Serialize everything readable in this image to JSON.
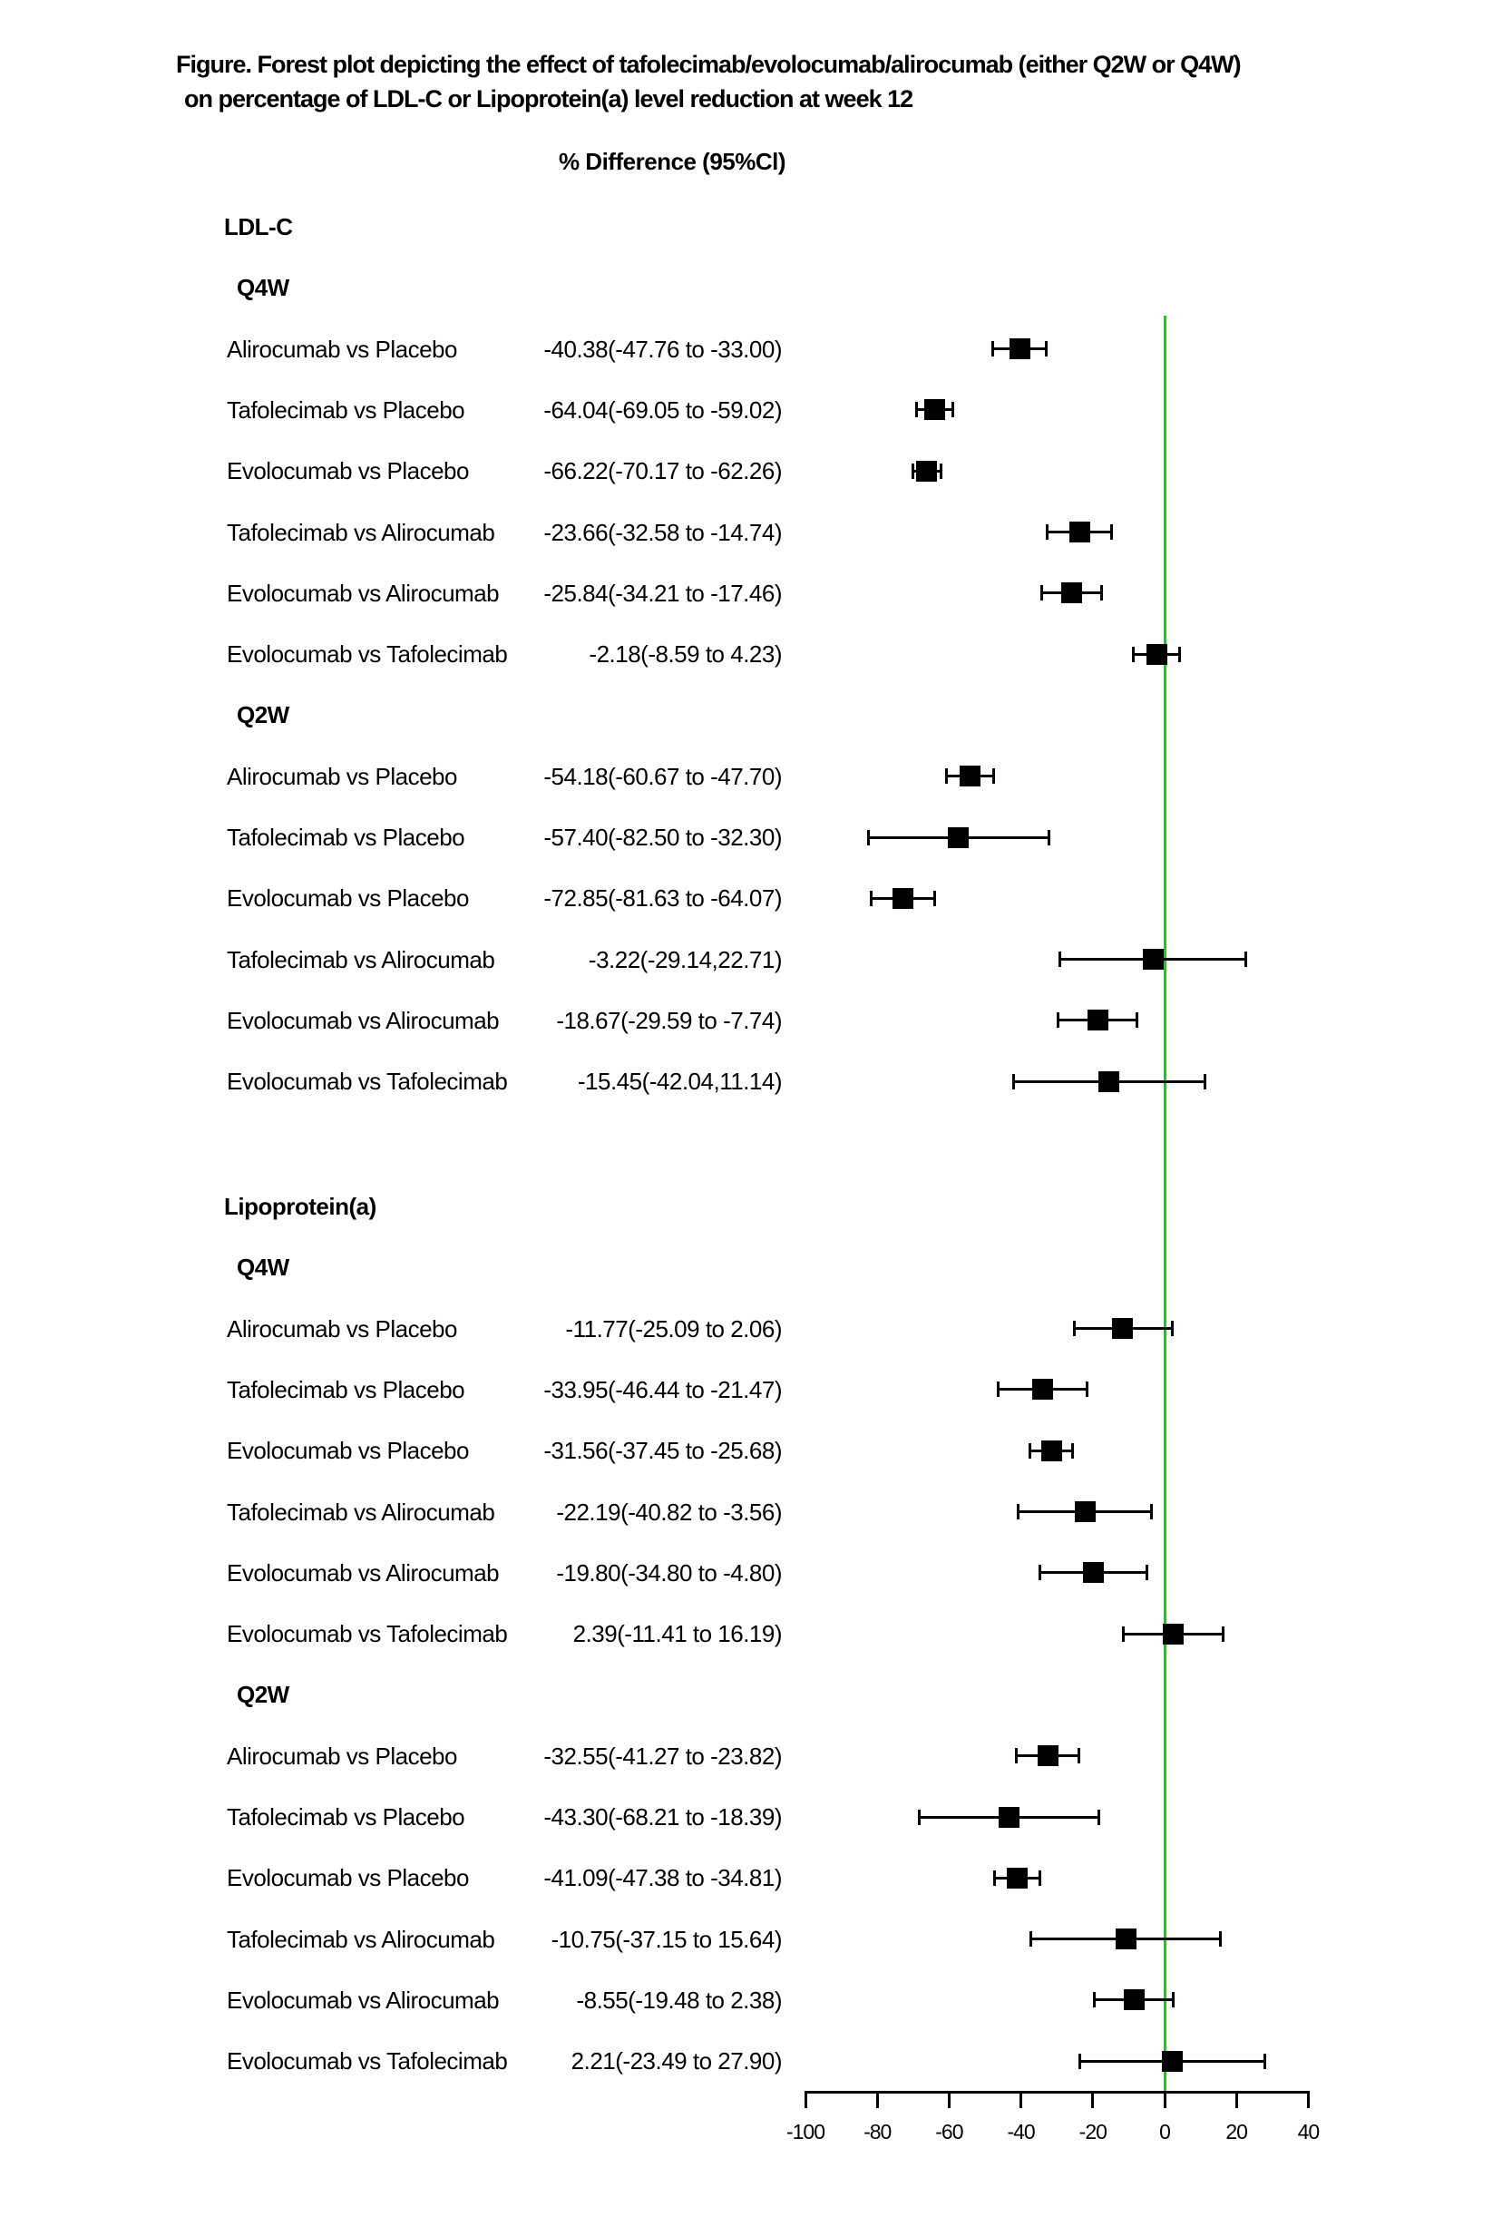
{
  "title": {
    "line1": "Figure. Forest plot depicting the effect of tafolecimab/evolocumab/alirocumab (either Q2W or Q4W)",
    "line2": "on percentage of LDL-C or Lipoprotein(a) level reduction at week 12"
  },
  "column_header": "% Difference (95%Cl)",
  "colors": {
    "zero_line": "#00dd00",
    "marker": "#000000",
    "axis": "#000000",
    "text": "#000000",
    "background": "#ffffff"
  },
  "chart_data": {
    "type": "forest",
    "xlim": [
      -100,
      40
    ],
    "x_ticks": [
      -100,
      -80,
      -60,
      -40,
      -20,
      0,
      20,
      40
    ],
    "zero_reference_x": 0,
    "grid": false,
    "sections": [
      {
        "name": "LDL-C",
        "groups": [
          {
            "name": "Q4W",
            "rows": [
              {
                "label": "Alirocumab vs Placebo",
                "display": "-40.38(-47.76 to -33.00)",
                "est": -40.38,
                "lo": -47.76,
                "hi": -33.0
              },
              {
                "label": "Tafolecimab vs Placebo",
                "display": "-64.04(-69.05 to -59.02)",
                "est": -64.04,
                "lo": -69.05,
                "hi": -59.02
              },
              {
                "label": "Evolocumab vs Placebo",
                "display": "-66.22(-70.17 to -62.26)",
                "est": -66.22,
                "lo": -70.17,
                "hi": -62.26
              },
              {
                "label": "Tafolecimab vs Alirocumab",
                "display": "-23.66(-32.58 to -14.74)",
                "est": -23.66,
                "lo": -32.58,
                "hi": -14.74
              },
              {
                "label": "Evolocumab vs Alirocumab",
                "display": "-25.84(-34.21 to -17.46)",
                "est": -25.84,
                "lo": -34.21,
                "hi": -17.46
              },
              {
                "label": "Evolocumab vs Tafolecimab",
                "display": "-2.18(-8.59 to 4.23)",
                "est": -2.18,
                "lo": -8.59,
                "hi": 4.23
              }
            ]
          },
          {
            "name": "Q2W",
            "rows": [
              {
                "label": "Alirocumab vs Placebo",
                "display": "-54.18(-60.67 to -47.70)",
                "est": -54.18,
                "lo": -60.67,
                "hi": -47.7
              },
              {
                "label": "Tafolecimab vs Placebo",
                "display": "-57.40(-82.50 to -32.30)",
                "est": -57.4,
                "lo": -82.5,
                "hi": -32.3
              },
              {
                "label": "Evolocumab vs Placebo",
                "display": "-72.85(-81.63 to -64.07)",
                "est": -72.85,
                "lo": -81.63,
                "hi": -64.07
              },
              {
                "label": "Tafolecimab vs Alirocumab",
                "display": "-3.22(-29.14,22.71)",
                "est": -3.22,
                "lo": -29.14,
                "hi": 22.71
              },
              {
                "label": "Evolocumab vs Alirocumab",
                "display": "-18.67(-29.59 to -7.74)",
                "est": -18.67,
                "lo": -29.59,
                "hi": -7.74
              },
              {
                "label": "Evolocumab vs Tafolecimab",
                "display": "-15.45(-42.04,11.14)",
                "est": -15.45,
                "lo": -42.04,
                "hi": 11.14
              }
            ]
          }
        ]
      },
      {
        "name": "Lipoprotein(a)",
        "groups": [
          {
            "name": "Q4W",
            "rows": [
              {
                "label": "Alirocumab vs Placebo",
                "display": "-11.77(-25.09 to 2.06)",
                "est": -11.77,
                "lo": -25.09,
                "hi": 2.06
              },
              {
                "label": "Tafolecimab vs Placebo",
                "display": "-33.95(-46.44 to -21.47)",
                "est": -33.95,
                "lo": -46.44,
                "hi": -21.47
              },
              {
                "label": "Evolocumab vs Placebo",
                "display": "-31.56(-37.45 to -25.68)",
                "est": -31.56,
                "lo": -37.45,
                "hi": -25.68
              },
              {
                "label": "Tafolecimab vs Alirocumab",
                "display": "-22.19(-40.82 to -3.56)",
                "est": -22.19,
                "lo": -40.82,
                "hi": -3.56
              },
              {
                "label": "Evolocumab vs Alirocumab",
                "display": "-19.80(-34.80 to -4.80)",
                "est": -19.8,
                "lo": -34.8,
                "hi": -4.8
              },
              {
                "label": "Evolocumab vs Tafolecimab",
                "display": "2.39(-11.41 to 16.19)",
                "est": 2.39,
                "lo": -11.41,
                "hi": 16.19
              }
            ]
          },
          {
            "name": "Q2W",
            "rows": [
              {
                "label": "Alirocumab vs Placebo",
                "display": "-32.55(-41.27 to -23.82)",
                "est": -32.55,
                "lo": -41.27,
                "hi": -23.82
              },
              {
                "label": "Tafolecimab vs Placebo",
                "display": "-43.30(-68.21 to -18.39)",
                "est": -43.3,
                "lo": -68.21,
                "hi": -18.39
              },
              {
                "label": "Evolocumab vs Placebo",
                "display": "-41.09(-47.38 to -34.81)",
                "est": -41.09,
                "lo": -47.38,
                "hi": -34.81
              },
              {
                "label": "Tafolecimab vs Alirocumab",
                "display": "-10.75(-37.15 to 15.64)",
                "est": -10.75,
                "lo": -37.15,
                "hi": 15.64
              },
              {
                "label": "Evolocumab vs Alirocumab",
                "display": "-8.55(-19.48 to 2.38)",
                "est": -8.55,
                "lo": -19.48,
                "hi": 2.38
              },
              {
                "label": "Evolocumab vs Tafolecimab",
                "display": "2.21(-23.49 to 27.90)",
                "est": 2.21,
                "lo": -23.49,
                "hi": 27.9
              }
            ]
          }
        ]
      }
    ]
  }
}
